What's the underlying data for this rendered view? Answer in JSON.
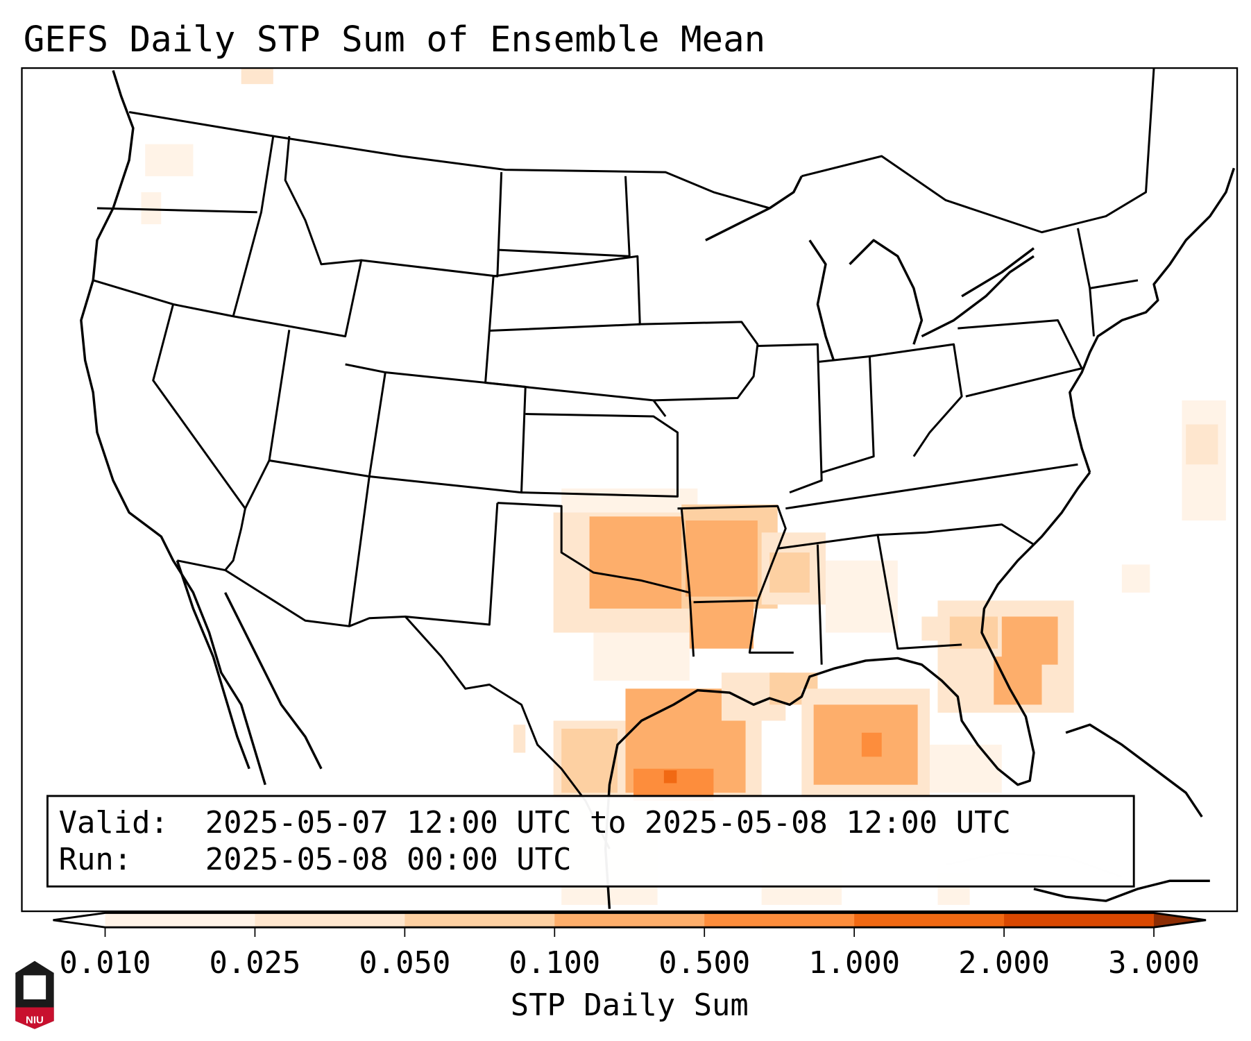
{
  "title": "GEFS Daily STP Sum of Ensemble Mean",
  "info": {
    "valid_label": "Valid:",
    "valid_value": "2025-05-07 12:00 UTC to 2025-05-08 12:00 UTC",
    "run_label": "Run:",
    "run_value": "2025-05-08 00:00 UTC"
  },
  "colorbar": {
    "label": "STP Daily Sum",
    "ticks": [
      "0.010",
      "0.025",
      "0.050",
      "0.100",
      "0.500",
      "1.000",
      "2.000",
      "3.000"
    ],
    "colors": [
      "#fff3e7",
      "#fee6ce",
      "#fdd0a2",
      "#fdae6b",
      "#fd8d3c",
      "#f16913",
      "#d94801",
      "#8c2d04"
    ],
    "under_color": "#ffffff"
  },
  "logo": {
    "text": "NIU"
  }
}
